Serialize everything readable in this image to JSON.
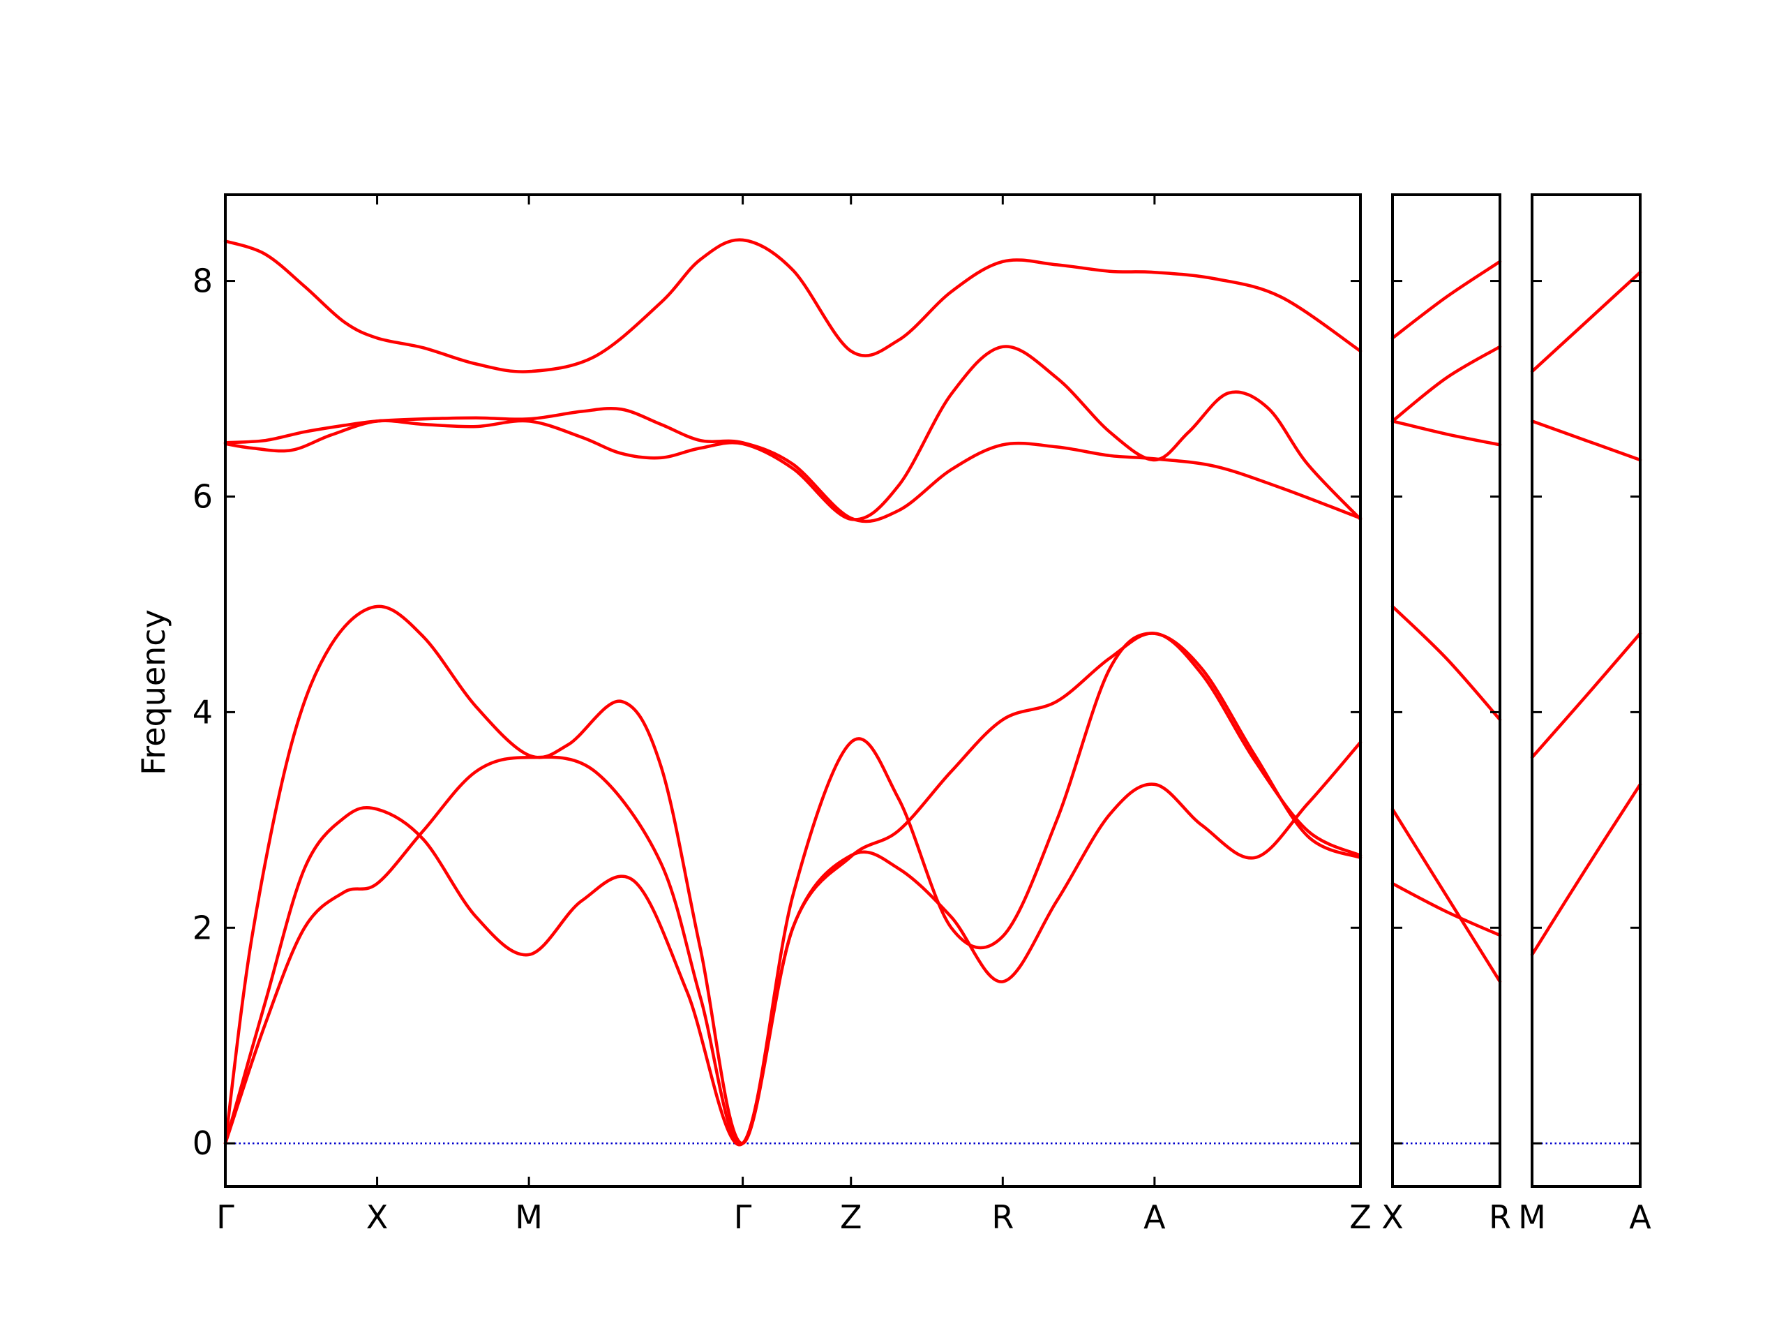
{
  "chart_data": {
    "type": "line",
    "title": "",
    "ylabel": "Frequency",
    "ylim": [
      -0.4,
      8.8
    ],
    "yticks": [
      0,
      2,
      4,
      6,
      8
    ],
    "colors": {
      "band": "#ff0000",
      "zero_line": "#0000cc",
      "frame": "#000000"
    },
    "zero_line_style": "dotted",
    "panels": [
      {
        "xlim": [
          0,
          8.6
        ],
        "ticks": [
          {
            "x": 0,
            "label": "Γ"
          },
          {
            "x": 1.15,
            "label": "X"
          },
          {
            "x": 2.3,
            "label": "M"
          },
          {
            "x": 3.92,
            "label": "Γ"
          },
          {
            "x": 4.74,
            "label": "Z"
          },
          {
            "x": 5.89,
            "label": "R"
          },
          {
            "x": 7.04,
            "label": "A"
          },
          {
            "x": 8.6,
            "label": "Z"
          }
        ],
        "series": [
          {
            "x": [
              0,
              0.3,
              0.6,
              0.9,
              1.15,
              1.5,
              1.9,
              2.3,
              2.8,
              3.3,
              3.6,
              3.92,
              4.3,
              4.74,
              5.1,
              5.5,
              5.89,
              6.3,
              6.7,
              7.04,
              7.5,
              8.0,
              8.6
            ],
            "y": [
              8.37,
              8.25,
              7.95,
              7.62,
              7.47,
              7.38,
              7.23,
              7.16,
              7.3,
              7.8,
              8.2,
              8.38,
              8.1,
              7.35,
              7.45,
              7.9,
              8.18,
              8.15,
              8.09,
              8.08,
              8.02,
              7.85,
              7.35
            ]
          },
          {
            "x": [
              0,
              0.3,
              0.6,
              0.9,
              1.15,
              1.5,
              1.9,
              2.3,
              2.7,
              3.0,
              3.3,
              3.6,
              3.92,
              4.3,
              4.74,
              5.1,
              5.5,
              5.89,
              6.3,
              6.7,
              7.04,
              7.5,
              8.0,
              8.6
            ],
            "y": [
              6.5,
              6.52,
              6.6,
              6.66,
              6.7,
              6.72,
              6.73,
              6.72,
              6.79,
              6.81,
              6.67,
              6.52,
              6.5,
              6.3,
              5.8,
              5.87,
              6.25,
              6.48,
              6.46,
              6.38,
              6.35,
              6.28,
              6.08,
              5.8
            ]
          },
          {
            "x": [
              0,
              0.2,
              0.5,
              0.8,
              1.15,
              1.5,
              1.9,
              2.3,
              2.7,
              3.0,
              3.3,
              3.6,
              3.92,
              4.3,
              4.74,
              5.1,
              5.5,
              5.89,
              6.3,
              6.7,
              7.04,
              7.3,
              7.6,
              7.9,
              8.2,
              8.6
            ],
            "y": [
              6.49,
              6.45,
              6.43,
              6.57,
              6.7,
              6.67,
              6.65,
              6.7,
              6.55,
              6.4,
              6.36,
              6.45,
              6.49,
              6.26,
              5.79,
              6.1,
              6.95,
              7.39,
              7.1,
              6.6,
              6.34,
              6.6,
              6.96,
              6.82,
              6.3,
              5.79
            ]
          },
          {
            "x": [
              0,
              0.2,
              0.5,
              0.8,
              1.15,
              1.5,
              1.9,
              2.3,
              2.6,
              3.0,
              3.3,
              3.6,
              3.92,
              4.3,
              4.74,
              5.1,
              5.5,
              5.89,
              6.3,
              6.7,
              7.04,
              7.4,
              7.8,
              8.2,
              8.6
            ],
            "y": [
              0,
              1.9,
              3.7,
              4.62,
              4.98,
              4.7,
              4.05,
              3.6,
              3.7,
              4.1,
              3.5,
              1.8,
              0,
              2.0,
              2.66,
              2.9,
              3.45,
              3.93,
              4.1,
              4.5,
              4.73,
              4.4,
              3.6,
              2.85,
              2.65
            ]
          },
          {
            "x": [
              0,
              0.3,
              0.6,
              0.9,
              1.15,
              1.5,
              1.9,
              2.3,
              2.7,
              3.1,
              3.5,
              3.92,
              4.3,
              4.74,
              5.1,
              5.5,
              5.89,
              6.3,
              6.7,
              7.04,
              7.4,
              7.8,
              8.2,
              8.6
            ],
            "y": [
              0,
              1.3,
              2.55,
              3.02,
              3.1,
              2.82,
              2.1,
              1.75,
              2.25,
              2.43,
              1.4,
              0,
              2.3,
              3.72,
              3.2,
              2.0,
              1.92,
              3.0,
              4.4,
              4.73,
              4.35,
              3.55,
              2.9,
              2.67
            ]
          },
          {
            "x": [
              0,
              0.3,
              0.6,
              0.9,
              1.15,
              1.5,
              1.9,
              2.3,
              2.8,
              3.3,
              3.6,
              3.92,
              4.3,
              4.74,
              5.1,
              5.5,
              5.89,
              6.3,
              6.7,
              7.04,
              7.4,
              7.8,
              8.2,
              8.6
            ],
            "y": [
              0,
              1.1,
              2.0,
              2.33,
              2.41,
              2.9,
              3.45,
              3.58,
              3.45,
              2.6,
              1.35,
              0,
              2.0,
              2.67,
              2.55,
              2.1,
              1.5,
              2.25,
              3.05,
              3.33,
              2.95,
              2.65,
              3.15,
              3.72
            ]
          }
        ]
      },
      {
        "xlim": [
          0,
          1
        ],
        "ticks": [
          {
            "x": 0,
            "label": "X"
          },
          {
            "x": 1,
            "label": "R"
          }
        ],
        "series": [
          {
            "x": [
              0,
              0.5,
              1
            ],
            "y": [
              7.47,
              7.85,
              8.18
            ]
          },
          {
            "x": [
              0,
              0.5,
              1
            ],
            "y": [
              6.7,
              7.1,
              7.39
            ]
          },
          {
            "x": [
              0,
              0.5,
              1
            ],
            "y": [
              6.7,
              6.58,
              6.48
            ]
          },
          {
            "x": [
              0,
              0.5,
              1
            ],
            "y": [
              4.98,
              4.5,
              3.93
            ]
          },
          {
            "x": [
              0,
              0.5,
              1
            ],
            "y": [
              3.1,
              2.3,
              1.5
            ]
          },
          {
            "x": [
              0,
              0.5,
              1
            ],
            "y": [
              2.41,
              2.15,
              1.93
            ]
          }
        ]
      },
      {
        "xlim": [
          0,
          1
        ],
        "ticks": [
          {
            "x": 0,
            "label": "M"
          },
          {
            "x": 1,
            "label": "A"
          }
        ],
        "series": [
          {
            "x": [
              0,
              0.5,
              1
            ],
            "y": [
              7.16,
              7.62,
              8.08
            ]
          },
          {
            "x": [
              0,
              0.5,
              1
            ],
            "y": [
              6.7,
              6.52,
              6.34
            ]
          },
          {
            "x": [
              0,
              0.5,
              1
            ],
            "y": [
              3.58,
              4.15,
              4.73
            ]
          },
          {
            "x": [
              0,
              0.5,
              1
            ],
            "y": [
              1.75,
              2.55,
              3.33
            ]
          }
        ]
      }
    ]
  }
}
